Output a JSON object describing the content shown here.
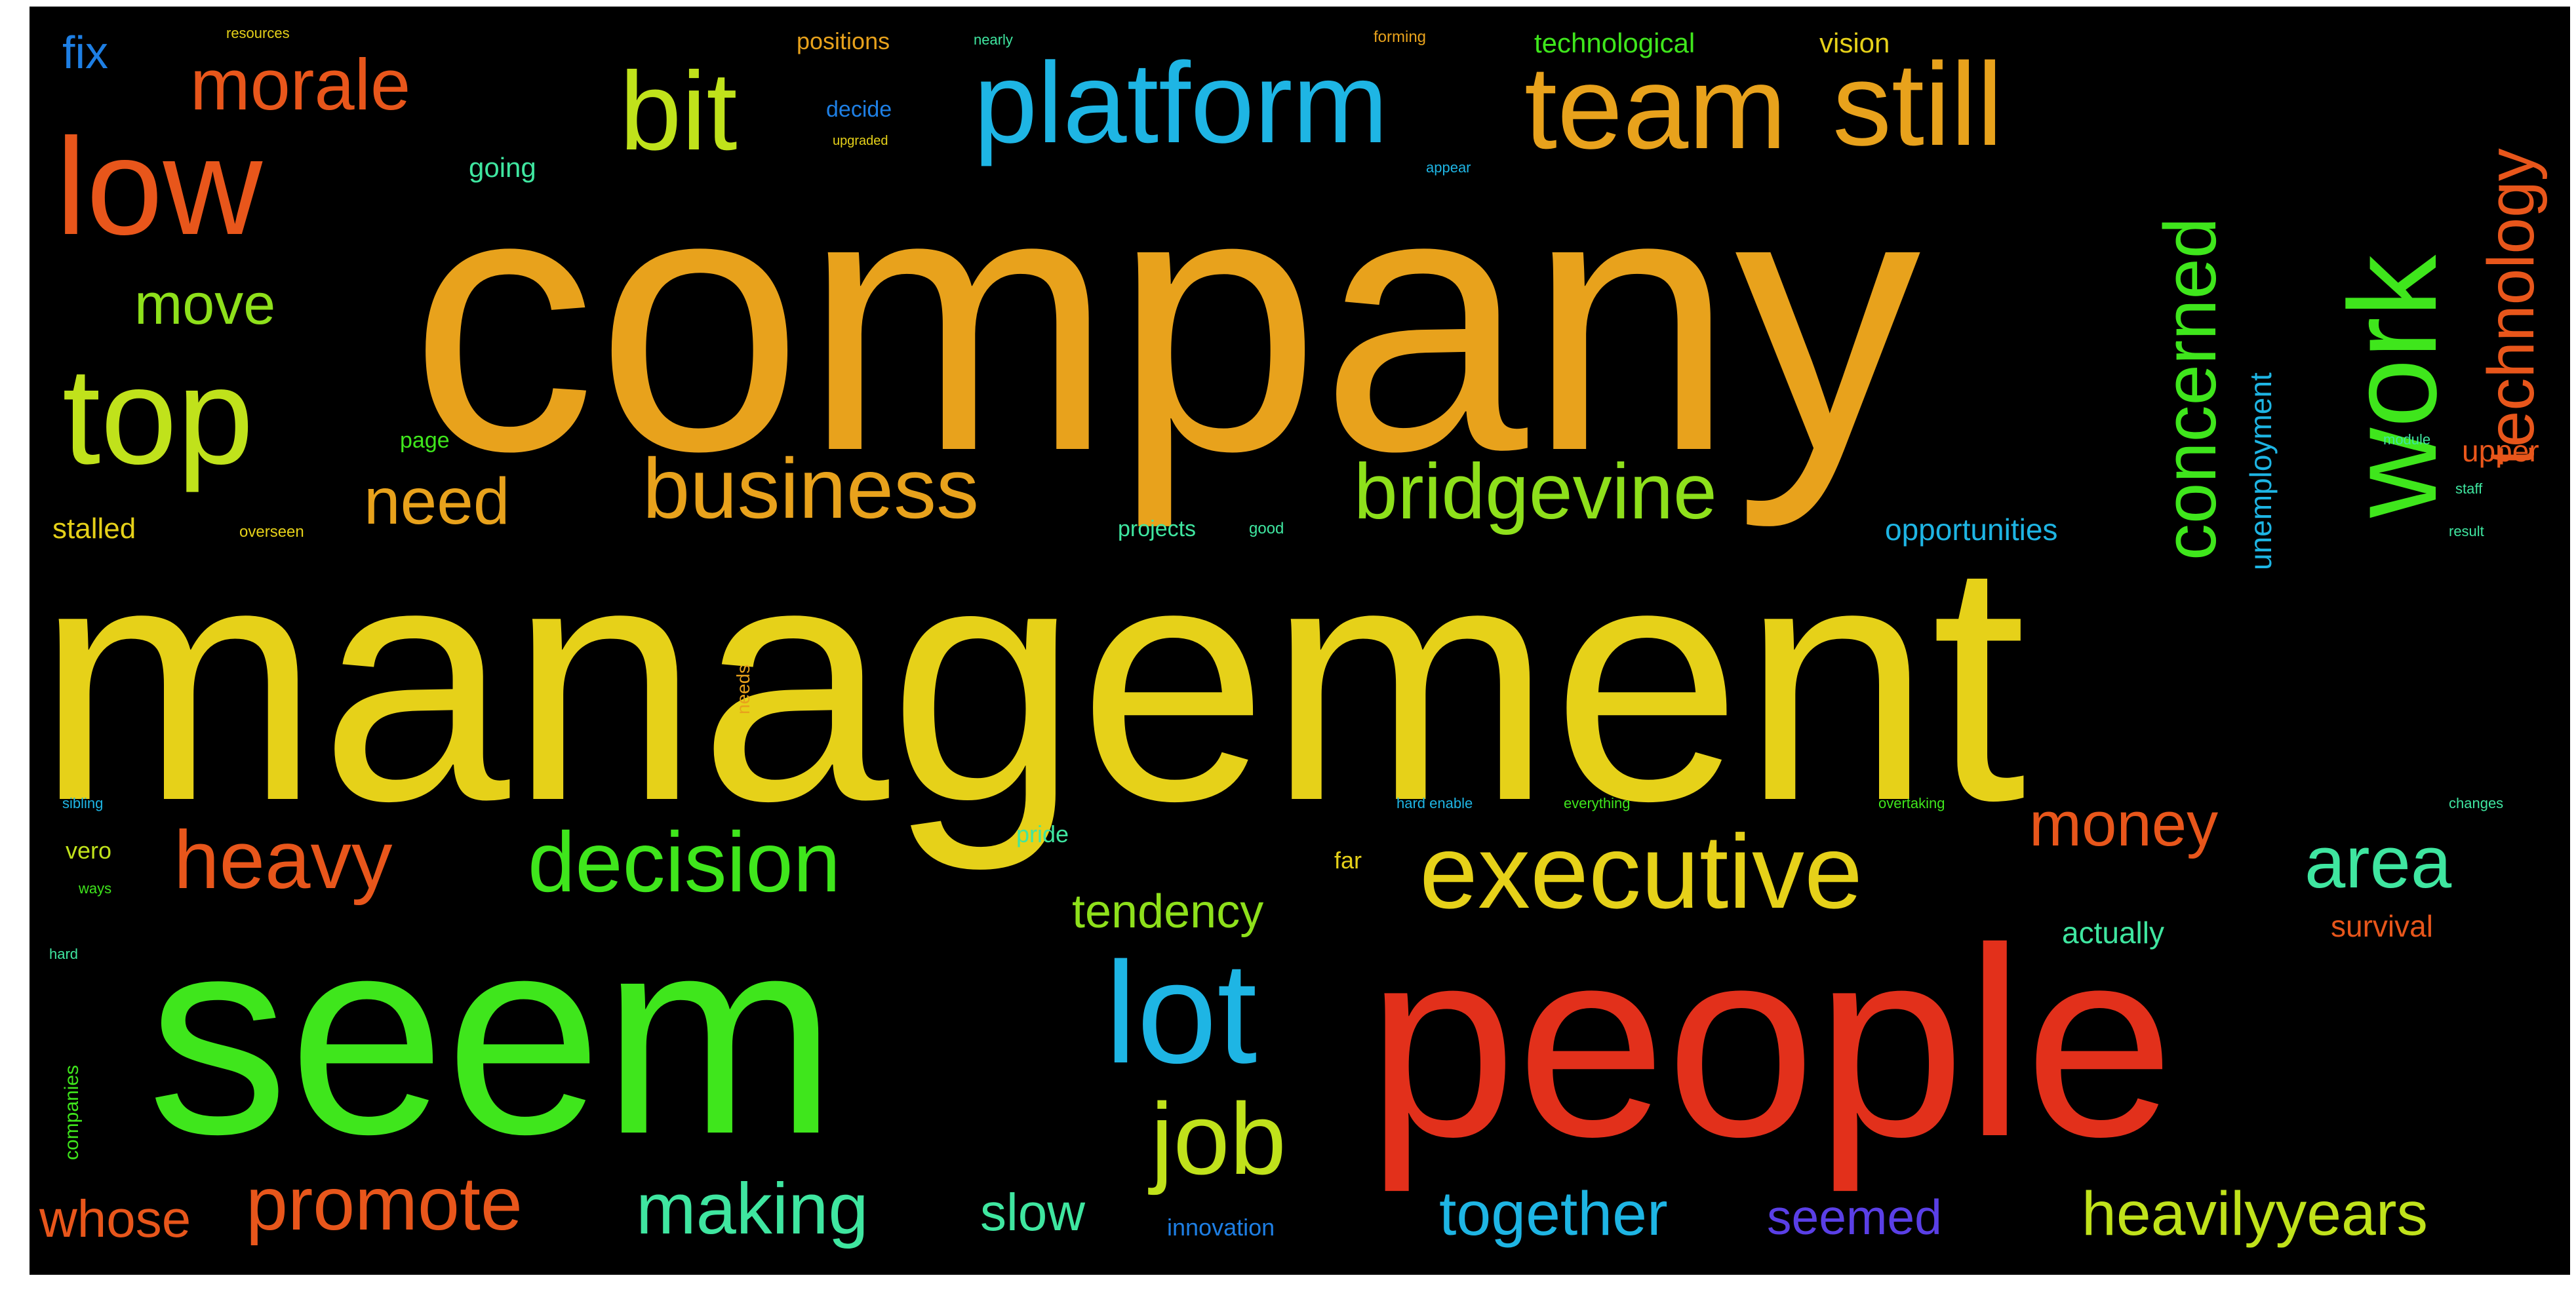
{
  "words": [
    {
      "text": "company",
      "color": "#E8A21C"
    },
    {
      "text": "management",
      "color": "#E6D119"
    },
    {
      "text": "seem",
      "color": "#3FE61C"
    },
    {
      "text": "people",
      "color": "#E2301B"
    },
    {
      "text": "platform",
      "color": "#1EB5E4"
    },
    {
      "text": "team",
      "color": "#E8A21C"
    },
    {
      "text": "still",
      "color": "#E8A21C"
    },
    {
      "text": "bit",
      "color": "#C0E21B"
    },
    {
      "text": "morale",
      "color": "#E8561B"
    },
    {
      "text": "low",
      "color": "#E8561B"
    },
    {
      "text": "top",
      "color": "#C0E21B"
    },
    {
      "text": "work",
      "color": "#3FE61C"
    },
    {
      "text": "business",
      "color": "#E8A21C"
    },
    {
      "text": "bridgevine",
      "color": "#8EE01B"
    },
    {
      "text": "need",
      "color": "#E8A21C"
    },
    {
      "text": "move",
      "color": "#8EE01B"
    },
    {
      "text": "concerned",
      "color": "#3FE61C"
    },
    {
      "text": "technology",
      "color": "#E8561B"
    },
    {
      "text": "unemployment",
      "color": "#1EB5E4"
    },
    {
      "text": "heavy",
      "color": "#E8561B"
    },
    {
      "text": "decision",
      "color": "#3FE61C"
    },
    {
      "text": "executive",
      "color": "#E6D119"
    },
    {
      "text": "money",
      "color": "#E8561B"
    },
    {
      "text": "area",
      "color": "#3FE6A0"
    },
    {
      "text": "lot",
      "color": "#1EB5E4"
    },
    {
      "text": "job",
      "color": "#C0E21B"
    },
    {
      "text": "promote",
      "color": "#E8561B"
    },
    {
      "text": "making",
      "color": "#3FE6A0"
    },
    {
      "text": "together",
      "color": "#1EB5E4"
    },
    {
      "text": "seemed",
      "color": "#5A3FE6"
    },
    {
      "text": "heavilyyears",
      "color": "#C0E21B"
    },
    {
      "text": "whose",
      "color": "#E8561B"
    },
    {
      "text": "slow",
      "color": "#3FE6A0"
    },
    {
      "text": "tendency",
      "color": "#8EE01B"
    },
    {
      "text": "fix",
      "color": "#1E7FE4"
    },
    {
      "text": "opportunities",
      "color": "#1EB5E4"
    },
    {
      "text": "stalled",
      "color": "#E6D119"
    },
    {
      "text": "actually",
      "color": "#3FE6A0"
    },
    {
      "text": "survival",
      "color": "#E8561B"
    },
    {
      "text": "upper",
      "color": "#E8561B"
    },
    {
      "text": "going",
      "color": "#3FE6A0"
    },
    {
      "text": "technological",
      "color": "#3FE61C"
    },
    {
      "text": "vision",
      "color": "#E6D119"
    },
    {
      "text": "positions",
      "color": "#E8A21C"
    },
    {
      "text": "decide",
      "color": "#1E7FE4"
    },
    {
      "text": "projects",
      "color": "#3FE6A0"
    },
    {
      "text": "page",
      "color": "#3FE61C"
    },
    {
      "text": "pride",
      "color": "#3FE6A0"
    },
    {
      "text": "vero",
      "color": "#C0E21B"
    },
    {
      "text": "innovation",
      "color": "#1E7FE4"
    },
    {
      "text": "companies",
      "color": "#3FE61C"
    },
    {
      "text": "far",
      "color": "#E6D119"
    },
    {
      "text": "needs",
      "color": "#E8A21C"
    },
    {
      "text": "everything",
      "color": "#3FE61C"
    },
    {
      "text": "overtaking",
      "color": "#3FE61C"
    },
    {
      "text": "resources",
      "color": "#E6D119"
    },
    {
      "text": "upgraded",
      "color": "#E6D119"
    },
    {
      "text": "appear",
      "color": "#1EB5E4"
    },
    {
      "text": "nearly",
      "color": "#3FE6A0"
    },
    {
      "text": "forming",
      "color": "#E8A21C"
    },
    {
      "text": "overseen",
      "color": "#E6D119"
    },
    {
      "text": "good",
      "color": "#3FE6A0"
    },
    {
      "text": "result",
      "color": "#3FE6A0"
    },
    {
      "text": "module",
      "color": "#3FE6A0"
    },
    {
      "text": "staff",
      "color": "#3FE6A0"
    },
    {
      "text": "ways",
      "color": "#3FE61C"
    },
    {
      "text": "hard",
      "color": "#3FE6A0"
    },
    {
      "text": "sibling",
      "color": "#1EB5E4"
    },
    {
      "text": "hard enable",
      "color": "#1EB5E4"
    },
    {
      "text": "changes",
      "color": "#3FE6A0"
    }
  ]
}
